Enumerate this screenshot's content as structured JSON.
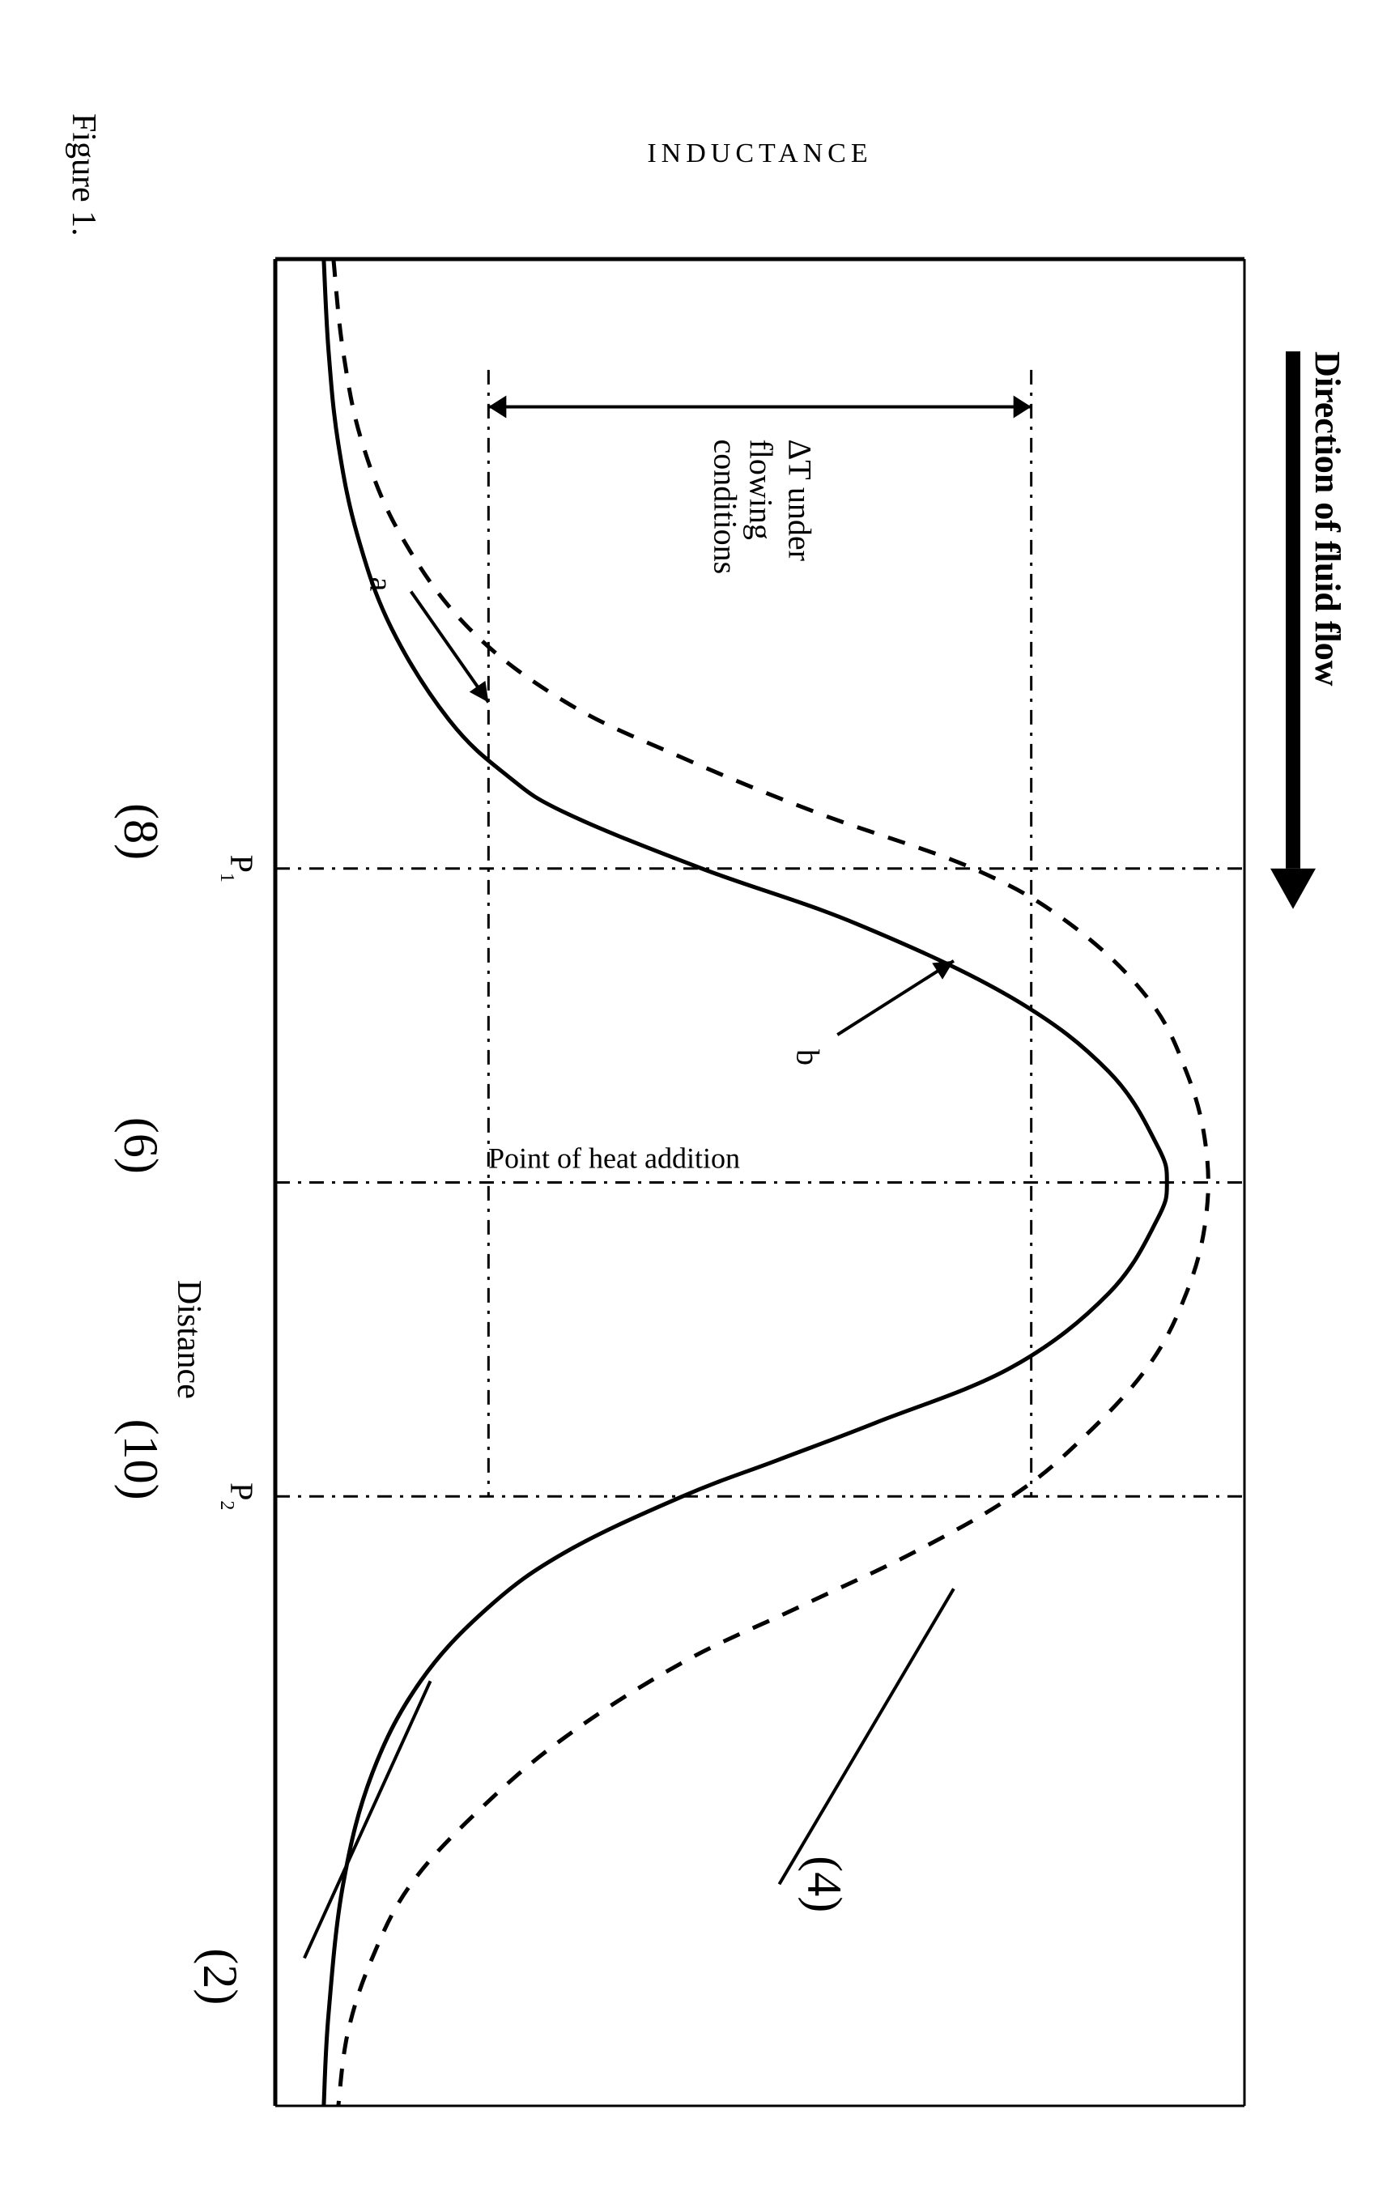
{
  "figure": {
    "caption": "Figure 1.",
    "caption_fontsize": 42,
    "x_axis_label": "Distance",
    "x_axis_label_fontsize": 42,
    "y_axis_label": "INDUCTANCE",
    "y_axis_label_fontsize": 34,
    "y_axis_label_style": "handwritten-caps",
    "direction_arrow_label": "Direction of fluid flow",
    "direction_arrow_fontsize": 44,
    "heat_line_label": "Point of heat addition",
    "heat_line_fontsize": 36,
    "deltaT_label_top": "ΔT under",
    "deltaT_label_mid": "flowing",
    "deltaT_label_bot": "conditions",
    "deltaT_fontsize": 40,
    "curve_a_label": "a",
    "curve_b_label": "b",
    "curve_label_fontsize": 40,
    "callouts": {
      "two": "(2)",
      "four": "(4)",
      "six": "(6)",
      "eight": "(8)",
      "ten": "(10)"
    },
    "callout_fontsize": 60,
    "plot": {
      "background_color": "#ffffff",
      "axis_color": "#000000",
      "axis_width": 5,
      "frame_top_width": 3,
      "frame_right_width": 3,
      "dashdot_color": "#000000",
      "dashdot_width": 3,
      "curve_solid_width": 5,
      "curve_dash_width": 5,
      "x_range": [
        0,
        100
      ],
      "y_range": [
        0,
        100
      ],
      "P1_x": 33,
      "P2_x": 67,
      "heat_x": 50,
      "deltaT_y_low": 22,
      "deltaT_y_high": 78,
      "P1_label": "P",
      "P1_sub": "1",
      "P2_label": "P",
      "P2_sub": "2",
      "P_label_fontsize": 40,
      "curve_a_points": [
        [
          0,
          5
        ],
        [
          5,
          5.5
        ],
        [
          10,
          6.5
        ],
        [
          15,
          8.5
        ],
        [
          20,
          12
        ],
        [
          25,
          18
        ],
        [
          28,
          24
        ],
        [
          30,
          30
        ],
        [
          33,
          44
        ],
        [
          36,
          60
        ],
        [
          40,
          76
        ],
        [
          44,
          86
        ],
        [
          48,
          91
        ],
        [
          50,
          92
        ],
        [
          52,
          91
        ],
        [
          56,
          86
        ],
        [
          60,
          76
        ],
        [
          63,
          62
        ],
        [
          65,
          52
        ],
        [
          67,
          42
        ],
        [
          70,
          30
        ],
        [
          73,
          22
        ],
        [
          77,
          15
        ],
        [
          82,
          10
        ],
        [
          88,
          7
        ],
        [
          95,
          5.5
        ],
        [
          100,
          5
        ]
      ],
      "curve_b_points": [
        [
          0,
          6
        ],
        [
          5,
          7
        ],
        [
          10,
          9
        ],
        [
          15,
          13
        ],
        [
          20,
          20
        ],
        [
          24,
          30
        ],
        [
          27,
          42
        ],
        [
          30,
          56
        ],
        [
          33,
          72
        ],
        [
          36,
          82
        ],
        [
          40,
          90
        ],
        [
          44,
          94
        ],
        [
          48,
          96
        ],
        [
          52,
          96
        ],
        [
          56,
          94
        ],
        [
          60,
          90
        ],
        [
          64,
          83
        ],
        [
          67,
          76
        ],
        [
          70,
          66
        ],
        [
          73,
          54
        ],
        [
          76,
          42
        ],
        [
          80,
          30
        ],
        [
          84,
          21
        ],
        [
          88,
          14
        ],
        [
          92,
          10
        ],
        [
          96,
          7.5
        ],
        [
          100,
          6.5
        ]
      ],
      "arrow_a_tip": [
        24,
        22
      ],
      "arrow_a_tail": [
        18,
        14
      ],
      "arrow_b_tip": [
        38,
        70
      ],
      "arrow_b_tail": [
        42,
        58
      ]
    },
    "callout_positions": {
      "two": {
        "line_from": [
          77,
          16
        ],
        "line_to": [
          92,
          3
        ],
        "text_at": [
          93,
          -2
        ]
      },
      "four": {
        "line_from": [
          72,
          70
        ],
        "line_to": [
          88,
          52
        ],
        "text_at": [
          88,
          55
        ]
      },
      "six": {
        "text_at": [
          48,
          -9
        ]
      },
      "eight": {
        "text_at": [
          31,
          -9
        ]
      },
      "ten": {
        "text_at": [
          65,
          -9
        ]
      }
    }
  }
}
